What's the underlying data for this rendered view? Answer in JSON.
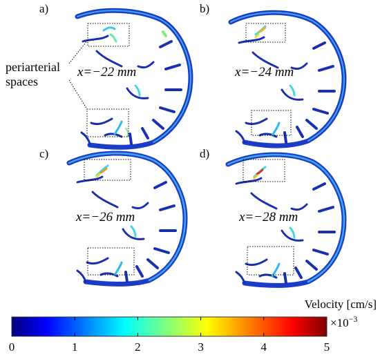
{
  "panels": [
    {
      "label": "a)",
      "slice": "x=−22 mm"
    },
    {
      "label": "b)",
      "slice": "x=−24 mm"
    },
    {
      "label": "c)",
      "slice": "x=−26 mm"
    },
    {
      "label": "d)",
      "slice": "x=−28 mm"
    }
  ],
  "annotation": {
    "line1": "periarterial",
    "line2": "spaces"
  },
  "colorbar": {
    "title": "Velocity [cm/s]",
    "multiplier_base": "×10",
    "multiplier_exp": "−3",
    "ticks": [
      "0",
      "1",
      "2",
      "3",
      "4",
      "5"
    ],
    "range": [
      0,
      5
    ],
    "colormap": "jet",
    "colors": [
      "#00007f",
      "#0000ff",
      "#007fff",
      "#00ffff",
      "#7fff7f",
      "#ffff00",
      "#ff7f00",
      "#ff0000",
      "#7f0000"
    ]
  }
}
